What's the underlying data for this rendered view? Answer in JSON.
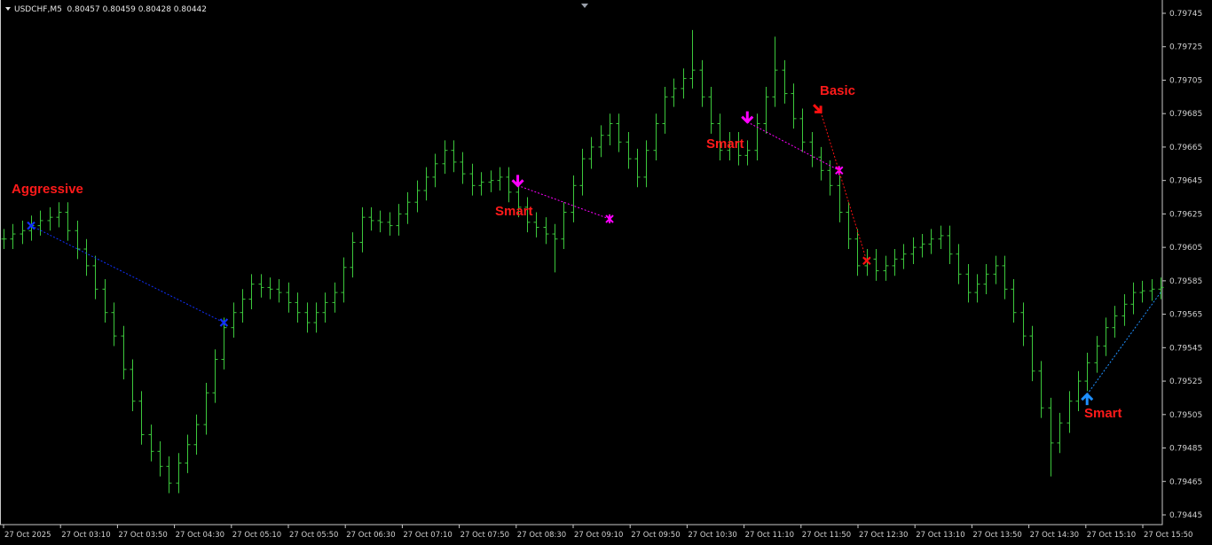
{
  "header": {
    "symbol": "USDCHF,M5",
    "ohlc": "0.80457 0.80459 0.80428 0.80442"
  },
  "colors": {
    "background": "#000000",
    "bars": "#3cc83c",
    "axis_text": "#d0d0d0",
    "frame": "#c8c8c8",
    "magenta": "#ff00ff",
    "red": "#ff1010",
    "blue": "#1030ff",
    "light_blue": "#1e90ff",
    "label_red": "#ff1a1a"
  },
  "chart_data": {
    "type": "bar",
    "style": "ohlc",
    "ylim": [
      0.79435,
      0.79755
    ],
    "y_ticks": [
      "0.79745",
      "0.79725",
      "0.79705",
      "0.79685",
      "0.79665",
      "0.79645",
      "0.79625",
      "0.79605",
      "0.79585",
      "0.79565",
      "0.79545",
      "0.79525",
      "0.79505",
      "0.79485",
      "0.79465",
      "0.79445"
    ],
    "x_ticks": [
      "27 Oct 2025",
      "27 Oct 03:10",
      "27 Oct 03:50",
      "27 Oct 04:30",
      "27 Oct 05:10",
      "27 Oct 05:50",
      "27 Oct 06:30",
      "27 Oct 07:10",
      "27 Oct 07:50",
      "27 Oct 08:30",
      "27 Oct 09:10",
      "27 Oct 09:50",
      "27 Oct 10:30",
      "27 Oct 11:10",
      "27 Oct 11:50",
      "27 Oct 12:30",
      "27 Oct 13:10",
      "27 Oct 13:50",
      "27 Oct 14:30",
      "27 Oct 15:10",
      "27 Oct 15:50"
    ],
    "grid": false,
    "bars_hlc": [
      [
        0.79616,
        0.79604,
        0.7961
      ],
      [
        0.79619,
        0.79604,
        0.79613
      ],
      [
        0.79621,
        0.79607,
        0.79615
      ],
      [
        0.79624,
        0.79609,
        0.79618
      ],
      [
        0.79627,
        0.79612,
        0.79621
      ],
      [
        0.79629,
        0.79615,
        0.79623
      ],
      [
        0.79632,
        0.79617,
        0.79626
      ],
      [
        0.79632,
        0.79609,
        0.79615
      ],
      [
        0.79621,
        0.79598,
        0.79604
      ],
      [
        0.7961,
        0.79588,
        0.79594
      ],
      [
        0.796,
        0.79574,
        0.7958
      ],
      [
        0.79586,
        0.7956,
        0.79566
      ],
      [
        0.79572,
        0.79546,
        0.79552
      ],
      [
        0.79558,
        0.79526,
        0.79532
      ],
      [
        0.79538,
        0.79507,
        0.79513
      ],
      [
        0.79519,
        0.79487,
        0.79493
      ],
      [
        0.79499,
        0.79477,
        0.79483
      ],
      [
        0.79489,
        0.79468,
        0.79474
      ],
      [
        0.7948,
        0.79458,
        0.79464
      ],
      [
        0.79482,
        0.79458,
        0.79476
      ],
      [
        0.79493,
        0.7947,
        0.79487
      ],
      [
        0.79505,
        0.79481,
        0.79499
      ],
      [
        0.79524,
        0.79493,
        0.79518
      ],
      [
        0.79544,
        0.79512,
        0.79538
      ],
      [
        0.79563,
        0.79532,
        0.79557
      ],
      [
        0.79572,
        0.79551,
        0.79566
      ],
      [
        0.7958,
        0.7956,
        0.79574
      ],
      [
        0.79589,
        0.79568,
        0.79583
      ],
      [
        0.79589,
        0.79575,
        0.79581
      ],
      [
        0.79587,
        0.79574,
        0.7958
      ],
      [
        0.79586,
        0.79572,
        0.79578
      ],
      [
        0.79584,
        0.79566,
        0.79572
      ],
      [
        0.79578,
        0.7956,
        0.79566
      ],
      [
        0.79572,
        0.79554,
        0.7956
      ],
      [
        0.79572,
        0.79554,
        0.79566
      ],
      [
        0.79578,
        0.7956,
        0.79572
      ],
      [
        0.79584,
        0.79566,
        0.79578
      ],
      [
        0.79599,
        0.79572,
        0.79593
      ],
      [
        0.79614,
        0.79587,
        0.79608
      ],
      [
        0.79629,
        0.79602,
        0.79623
      ],
      [
        0.79629,
        0.79615,
        0.79621
      ],
      [
        0.79627,
        0.79614,
        0.7962
      ],
      [
        0.79626,
        0.79612,
        0.79618
      ],
      [
        0.79631,
        0.79612,
        0.79625
      ],
      [
        0.79638,
        0.79619,
        0.79632
      ],
      [
        0.79645,
        0.79626,
        0.79639
      ],
      [
        0.79653,
        0.79633,
        0.79647
      ],
      [
        0.79661,
        0.79641,
        0.79655
      ],
      [
        0.79669,
        0.79649,
        0.79663
      ],
      [
        0.79669,
        0.7965,
        0.79656
      ],
      [
        0.79662,
        0.79643,
        0.79649
      ],
      [
        0.79655,
        0.79636,
        0.79642
      ],
      [
        0.7965,
        0.79636,
        0.79644
      ],
      [
        0.79651,
        0.79638,
        0.79645
      ],
      [
        0.79653,
        0.79639,
        0.79647
      ],
      [
        0.79653,
        0.79632,
        0.79638
      ],
      [
        0.79644,
        0.79623,
        0.79629
      ],
      [
        0.79635,
        0.79614,
        0.7962
      ],
      [
        0.79626,
        0.79611,
        0.79617
      ],
      [
        0.79623,
        0.79607,
        0.79613
      ],
      [
        0.79619,
        0.7959,
        0.7961
      ],
      [
        0.79632,
        0.79604,
        0.79626
      ],
      [
        0.79648,
        0.7962,
        0.79642
      ],
      [
        0.79664,
        0.79636,
        0.79658
      ],
      [
        0.79671,
        0.79652,
        0.79665
      ],
      [
        0.79678,
        0.79659,
        0.79672
      ],
      [
        0.79685,
        0.79666,
        0.79679
      ],
      [
        0.79685,
        0.79662,
        0.79668
      ],
      [
        0.79674,
        0.79652,
        0.79658
      ],
      [
        0.79664,
        0.79641,
        0.79647
      ],
      [
        0.79669,
        0.79641,
        0.79663
      ],
      [
        0.79685,
        0.79657,
        0.79679
      ],
      [
        0.79701,
        0.79673,
        0.79695
      ],
      [
        0.79706,
        0.79689,
        0.797
      ],
      [
        0.79712,
        0.79694,
        0.79706
      ],
      [
        0.79735,
        0.797,
        0.79711
      ],
      [
        0.79717,
        0.79689,
        0.79695
      ],
      [
        0.79701,
        0.79673,
        0.79679
      ],
      [
        0.79685,
        0.79657,
        0.79663
      ],
      [
        0.79674,
        0.79657,
        0.79668
      ],
      [
        0.79674,
        0.79654,
        0.7966
      ],
      [
        0.79669,
        0.79654,
        0.79663
      ],
      [
        0.79685,
        0.79657,
        0.79679
      ],
      [
        0.79701,
        0.79673,
        0.79695
      ],
      [
        0.79731,
        0.79689,
        0.79711
      ],
      [
        0.79717,
        0.79691,
        0.79697
      ],
      [
        0.79703,
        0.79676,
        0.79682
      ],
      [
        0.79688,
        0.79662,
        0.79668
      ],
      [
        0.79674,
        0.79653,
        0.79659
      ],
      [
        0.79665,
        0.79645,
        0.79651
      ],
      [
        0.79657,
        0.79636,
        0.79642
      ],
      [
        0.79648,
        0.7962,
        0.79626
      ],
      [
        0.79632,
        0.79604,
        0.7961
      ],
      [
        0.79616,
        0.79588,
        0.79594
      ],
      [
        0.79604,
        0.79588,
        0.79598
      ],
      [
        0.79604,
        0.79585,
        0.79591
      ],
      [
        0.796,
        0.79585,
        0.79594
      ],
      [
        0.79604,
        0.79588,
        0.79598
      ],
      [
        0.79607,
        0.79592,
        0.79601
      ],
      [
        0.79611,
        0.79595,
        0.79605
      ],
      [
        0.79613,
        0.79599,
        0.79607
      ],
      [
        0.79616,
        0.79601,
        0.7961
      ],
      [
        0.79618,
        0.79604,
        0.79612
      ],
      [
        0.79618,
        0.79595,
        0.79601
      ],
      [
        0.79607,
        0.79583,
        0.79589
      ],
      [
        0.79595,
        0.79572,
        0.79578
      ],
      [
        0.79589,
        0.79572,
        0.79583
      ],
      [
        0.79595,
        0.79577,
        0.79589
      ],
      [
        0.796,
        0.79583,
        0.79594
      ],
      [
        0.796,
        0.79574,
        0.7958
      ],
      [
        0.79586,
        0.7956,
        0.79566
      ],
      [
        0.79572,
        0.79546,
        0.79552
      ],
      [
        0.79558,
        0.79525,
        0.79531
      ],
      [
        0.79537,
        0.79503,
        0.79509
      ],
      [
        0.79515,
        0.79468,
        0.79488
      ],
      [
        0.79506,
        0.79482,
        0.795
      ],
      [
        0.79519,
        0.79494,
        0.79513
      ],
      [
        0.79531,
        0.79507,
        0.79525
      ],
      [
        0.79542,
        0.79519,
        0.79536
      ],
      [
        0.79552,
        0.7953,
        0.79546
      ],
      [
        0.79563,
        0.7954,
        0.79557
      ],
      [
        0.7957,
        0.79551,
        0.79564
      ],
      [
        0.79577,
        0.79558,
        0.79571
      ],
      [
        0.79584,
        0.79565,
        0.79578
      ],
      [
        0.79585,
        0.79572,
        0.79579
      ],
      [
        0.79586,
        0.79573,
        0.7958
      ],
      [
        0.79587,
        0.79574,
        0.79581
      ]
    ],
    "annotations": [
      {
        "label": "Aggressive",
        "color": "blue",
        "start": {
          "bar": 3,
          "price": 0.79618,
          "marker": "x"
        },
        "end": {
          "bar": 24,
          "price": 0.7956,
          "marker": "x"
        }
      },
      {
        "label": "Smart",
        "color": "magenta",
        "start": {
          "bar": 56,
          "price": 0.79642,
          "marker": "arrow-down"
        },
        "end": {
          "bar": 66,
          "price": 0.79622,
          "marker": "star"
        }
      },
      {
        "label": "Smart",
        "color": "magenta",
        "start": {
          "bar": 81,
          "price": 0.7968,
          "marker": "arrow-down"
        },
        "end": {
          "bar": 91,
          "price": 0.79651,
          "marker": "star"
        }
      },
      {
        "label": "Basic",
        "color": "red",
        "start": {
          "bar": 89,
          "price": 0.79686,
          "marker": "arrow-down-diag"
        },
        "end": {
          "bar": 94,
          "price": 0.79597,
          "marker": "x"
        }
      },
      {
        "label": "Smart",
        "color": "light_blue",
        "start": {
          "bar": 118,
          "price": 0.79517,
          "marker": "arrow-up"
        },
        "end": {
          "bar": 126,
          "price": 0.79578,
          "marker": "none"
        }
      }
    ]
  }
}
